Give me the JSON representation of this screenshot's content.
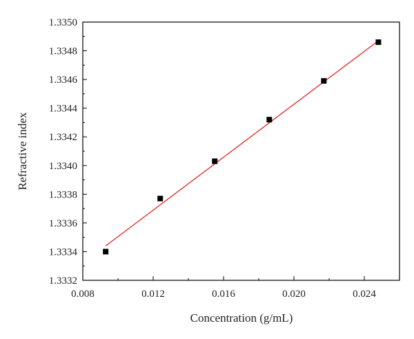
{
  "chart_data": {
    "type": "scatter",
    "xlabel": "Concentration (g/mL)",
    "ylabel": "Refractive index",
    "xlim": [
      0.008,
      0.026
    ],
    "ylim": [
      1.3332,
      1.335
    ],
    "x_ticks": [
      "0.008",
      "0.012",
      "0.016",
      "0.020",
      "0.024"
    ],
    "y_ticks": [
      "1.3332",
      "1.3334",
      "1.3336",
      "1.3338",
      "1.3340",
      "1.3342",
      "1.3344",
      "1.3346",
      "1.3348",
      "1.3350"
    ],
    "grid": false,
    "marker_color": "#000000",
    "fit_color": "#e8201c",
    "points": [
      {
        "x": 0.0093,
        "y": 1.3334
      },
      {
        "x": 0.0124,
        "y": 1.33377
      },
      {
        "x": 0.0155,
        "y": 1.33403
      },
      {
        "x": 0.0186,
        "y": 1.33432
      },
      {
        "x": 0.0217,
        "y": 1.33459
      },
      {
        "x": 0.0248,
        "y": 1.33486
      }
    ],
    "fit_line": {
      "x": [
        0.0093,
        0.0248
      ],
      "y": [
        1.33344,
        1.33487
      ]
    }
  }
}
